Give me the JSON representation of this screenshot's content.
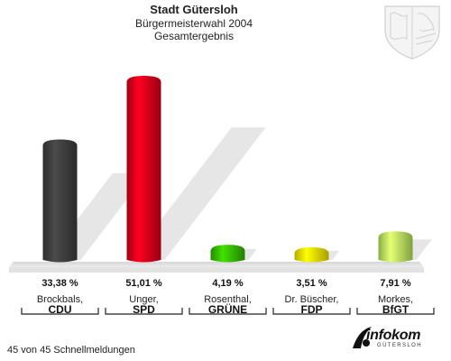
{
  "header": {
    "title": "Stadt Gütersloh",
    "subtitle": "Bürgermeisterwahl 2004",
    "subtitle2": "Gesamtergebnis"
  },
  "footer": {
    "status": "45 von 45 Schnellmeldungen"
  },
  "logo": {
    "text": "infokom",
    "subtext": "GÜTERSLOH"
  },
  "chart_data": {
    "type": "bar",
    "title": "Stadt Gütersloh",
    "subtitle": "Bürgermeisterwahl 2004 Gesamtergebnis",
    "ylim": [
      0,
      55
    ],
    "grid": false,
    "categories": [
      {
        "name": "Brockbals,",
        "party": "CDU"
      },
      {
        "name": "Unger,",
        "party": "SPD"
      },
      {
        "name": "Rosenthal,",
        "party": "GRÜNE"
      },
      {
        "name": "Dr. Büscher,",
        "party": "FDP"
      },
      {
        "name": "Morkes,",
        "party": "BfGT"
      }
    ],
    "values": [
      33.38,
      51.01,
      4.19,
      3.51,
      7.91
    ],
    "value_labels": [
      "33,38 %",
      "51,01 %",
      "4,19 %",
      "3,51 %",
      "7,91 %"
    ],
    "colors": [
      "#3c3c3c",
      "#d8001a",
      "#33b500",
      "#f1e400",
      "#b6e65c"
    ]
  }
}
